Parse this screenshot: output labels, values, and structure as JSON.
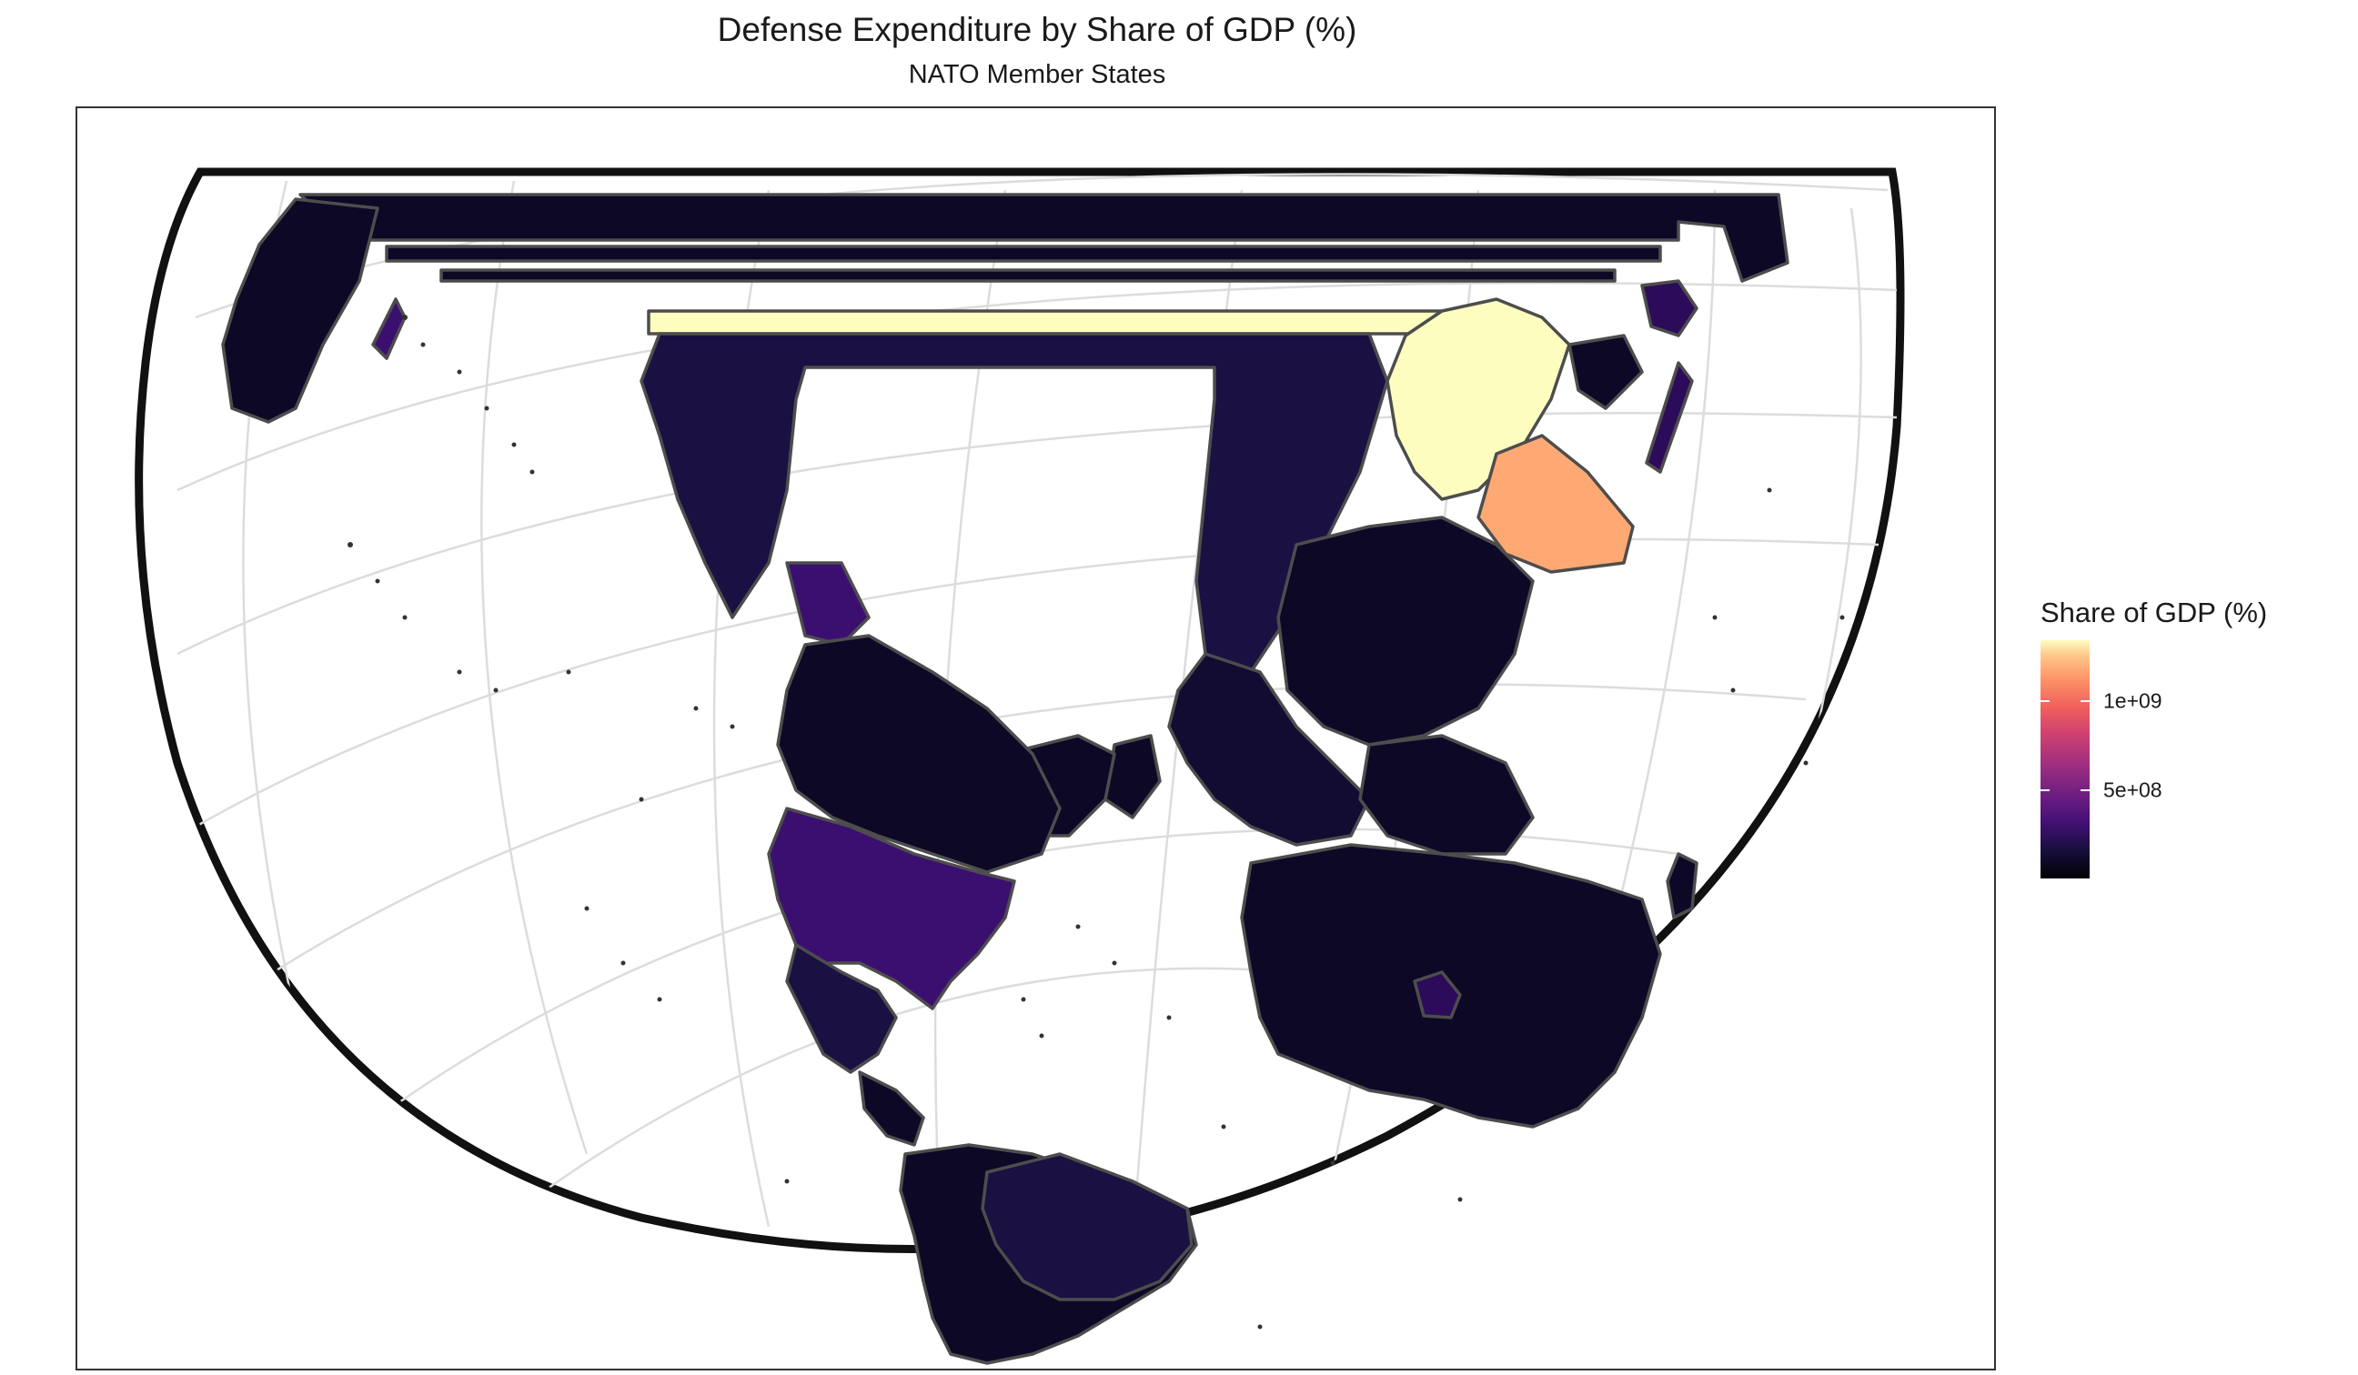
{
  "chart": {
    "title": "Defense Expenditure by Share of GDP (%)",
    "subtitle": "NATO Member States"
  },
  "legend": {
    "title": "Share of GDP (%)",
    "labels": [
      "1e+09",
      "5e+08"
    ]
  },
  "chart_data": {
    "type": "choropleth",
    "title": "Defense Expenditure by Share of GDP (%)",
    "subtitle": "NATO Member States",
    "legend_title": "Share of GDP (%)",
    "color_scale": "magma",
    "scale_range": [
      0,
      1400000000
    ],
    "legend_breaks": [
      500000000,
      1000000000
    ],
    "legend_break_labels": [
      "5e+08",
      "1e+09"
    ],
    "colors": {
      "low": "#000004",
      "mid": "#b63679",
      "high": "#fcfdbf",
      "border": "#4d4d4d",
      "graticule": "#dcdcdc"
    }
  }
}
